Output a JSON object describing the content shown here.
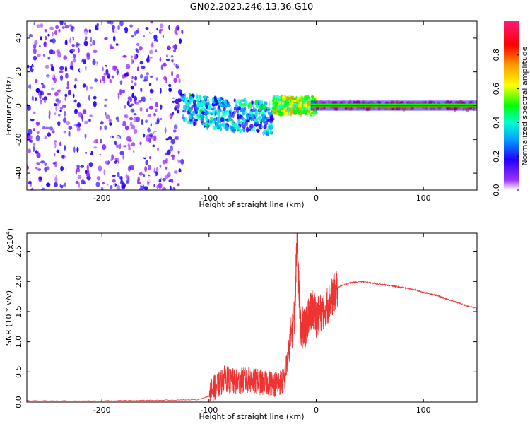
{
  "title": "GN02.2023.246.13.36.G10",
  "chart_data": [
    {
      "type": "heatmap",
      "xlabel": "Height of straight line (km)",
      "ylabel": "Frequency (Hz)",
      "xlim": [
        -270,
        150
      ],
      "ylim": [
        -50,
        50
      ],
      "x_ticks": [
        -200,
        -100,
        0,
        100
      ],
      "x_tick_labels": [
        "-200",
        "-100",
        "0",
        "100"
      ],
      "y_ticks": [
        -40,
        -20,
        0,
        20,
        40
      ],
      "y_tick_labels": [
        "-40",
        "-20",
        "0",
        "20",
        "40"
      ],
      "colorbar": {
        "label": "Normalized spectral amplitude",
        "range": [
          0,
          1
        ],
        "ticks": [
          0.0,
          0.2,
          0.4,
          0.6,
          0.8
        ],
        "tick_labels": [
          "0.0",
          "0.2",
          "0.4",
          "0.6",
          "0.8"
        ],
        "colors": [
          "#ffffff",
          "#9b30ff",
          "#2200ff",
          "#00a0ff",
          "#00ffd0",
          "#00ff00",
          "#ffff00",
          "#ff9900",
          "#ff0000",
          "#ff1a7a"
        ]
      },
      "regions": [
        {
          "x_range": [
            -270,
            -125
          ],
          "freq_range": [
            -50,
            50
          ],
          "amplitude": 0.1
        },
        {
          "x_range": [
            -125,
            -40
          ],
          "freq_range": [
            -22,
            12
          ],
          "amplitude": 0.35
        },
        {
          "x_range": [
            -40,
            0
          ],
          "freq_range": [
            -5,
            5
          ],
          "amplitude": 0.6
        },
        {
          "x_range": [
            0,
            150
          ],
          "freq_range": [
            -2,
            2
          ],
          "amplitude": 0.85
        }
      ],
      "grid": false
    },
    {
      "type": "line",
      "xlabel": "Height of straight line (km)",
      "ylabel": "SNR (10 * v/v)",
      "y_scale_note": "(x10",
      "y_scale_exponent": "4",
      "xlim": [
        -270,
        150
      ],
      "ylim": [
        0,
        2.8
      ],
      "x_ticks": [
        -200,
        -100,
        0,
        100
      ],
      "x_tick_labels": [
        "-200",
        "-100",
        "0",
        "100"
      ],
      "y_ticks": [
        0.0,
        0.5,
        1.0,
        1.5,
        2.0,
        2.5
      ],
      "y_tick_labels": [
        "0.0",
        "0.5",
        "1.0",
        "1.5",
        "2.0",
        "2.5"
      ],
      "series": [
        {
          "color": "#ee3333",
          "x": [
            -270,
            -200,
            -150,
            -110,
            -100,
            -95,
            -90,
            -85,
            -80,
            -75,
            -70,
            -65,
            -60,
            -55,
            -50,
            -45,
            -40,
            -35,
            -30,
            -25,
            -20,
            -18,
            -16,
            -14,
            -12,
            -10,
            -8,
            -5,
            -2,
            0,
            5,
            10,
            15,
            20,
            30,
            40,
            50,
            60,
            70,
            80,
            90,
            100,
            110,
            120,
            130,
            140,
            150
          ],
          "y": [
            0.02,
            0.02,
            0.03,
            0.04,
            0.1,
            0.25,
            0.3,
            0.4,
            0.35,
            0.33,
            0.35,
            0.36,
            0.35,
            0.34,
            0.32,
            0.33,
            0.3,
            0.32,
            0.35,
            0.9,
            1.5,
            2.75,
            1.8,
            1.1,
            1.3,
            1.2,
            1.4,
            1.5,
            1.55,
            1.4,
            1.5,
            1.6,
            1.75,
            1.9,
            1.97,
            2.0,
            1.98,
            1.95,
            1.93,
            1.9,
            1.87,
            1.82,
            1.78,
            1.72,
            1.66,
            1.6,
            1.55
          ],
          "noisy": true
        }
      ],
      "grid": false
    }
  ]
}
